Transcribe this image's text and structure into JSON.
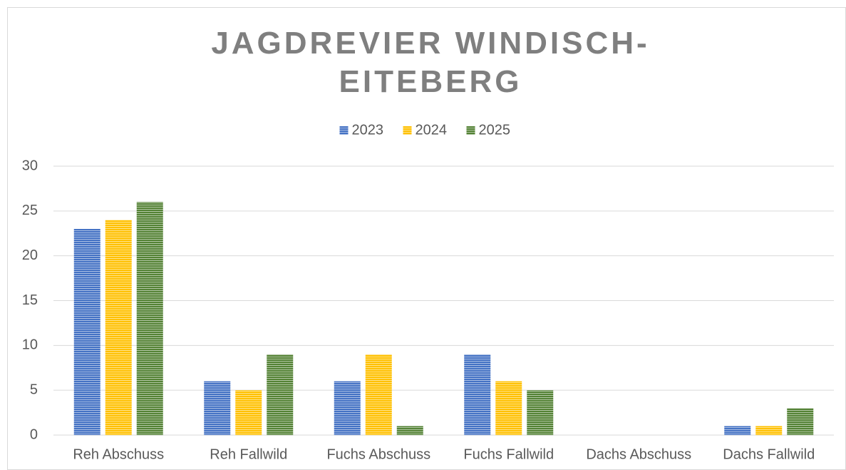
{
  "chart_data": {
    "type": "bar",
    "title": "JAGDREVIER WINDISCH-EITEBERG",
    "categories": [
      "Reh Abschuss",
      "Reh Fallwild",
      "Fuchs Abschuss",
      "Fuchs Fallwild",
      "Dachs Abschuss",
      "Dachs Fallwild"
    ],
    "series": [
      {
        "name": "2023",
        "color": "#4472c4",
        "values": [
          23,
          6,
          6,
          9,
          0,
          1
        ]
      },
      {
        "name": "2024",
        "color": "#ffc000",
        "values": [
          24,
          5,
          9,
          6,
          0,
          1
        ]
      },
      {
        "name": "2025",
        "color": "#548235",
        "values": [
          26,
          9,
          1,
          5,
          0,
          3
        ]
      }
    ],
    "ylim": [
      0,
      30
    ],
    "yticks": [
      0,
      5,
      10,
      15,
      20,
      25,
      30
    ],
    "grid": true,
    "legend": "top"
  }
}
